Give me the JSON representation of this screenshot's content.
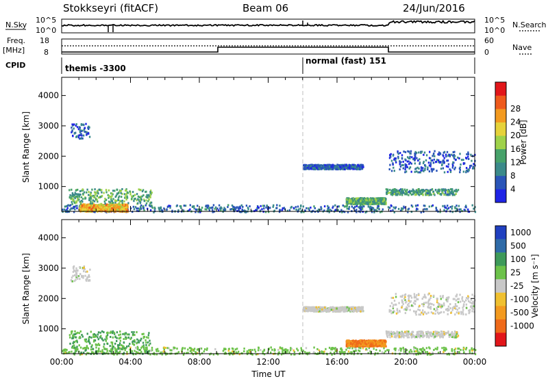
{
  "header": {
    "station": "Stokkseyri (fitACF)",
    "beam": "Beam 06",
    "date": "24/Jun/2016"
  },
  "top_panels": {
    "nsky_label": "N.Sky",
    "nsky_ticks": [
      "10^5",
      "10^0"
    ],
    "nsearch_label": "N.Search",
    "nsearch_ticks": [
      "10^5",
      "10^0"
    ],
    "freq_label_1": "Freq.",
    "freq_label_2": "[MHz]",
    "freq_ticks": [
      "18",
      "8"
    ],
    "nave_label": "Nave",
    "nave_ticks": [
      "60",
      "0"
    ],
    "cpid_label": "CPID",
    "cpid_modes": [
      {
        "label": "themis -3300",
        "start_hour": 0
      },
      {
        "label": "normal (fast) 151",
        "start_hour": 14
      }
    ]
  },
  "chart_data": [
    {
      "type": "heatmap",
      "name": "Power",
      "xlabel": "",
      "ylabel": "Slant Range [km]",
      "xlim": [
        0,
        24
      ],
      "ylim": [
        180,
        4600
      ],
      "yticks": [
        "1000",
        "2000",
        "3000",
        "4000"
      ],
      "colorbar_label": "Power [dB]",
      "colorbar_ticks": [
        "4",
        "8",
        "12",
        "16",
        "20",
        "24",
        "28"
      ],
      "colorbar_colors": [
        "#1f24e6",
        "#2a55b8",
        "#3b8a8a",
        "#47a26a",
        "#9fd24a",
        "#e6d23a",
        "#f39a1f",
        "#ef5a1c",
        "#e2161a"
      ],
      "scatter_regions": [
        {
          "t_start": 0.0,
          "t_end": 24.0,
          "r_min": 180,
          "r_max": 420,
          "density": "dense",
          "typical_power_db": 8
        },
        {
          "t_start": 1.0,
          "t_end": 3.8,
          "r_min": 200,
          "r_max": 450,
          "density": "dense",
          "typical_power_db": 24
        },
        {
          "t_start": 0.4,
          "t_end": 5.2,
          "r_min": 450,
          "r_max": 950,
          "density": "medium",
          "typical_power_db": 14
        },
        {
          "t_start": 0.5,
          "t_end": 1.6,
          "r_min": 2600,
          "r_max": 3100,
          "density": "sparse",
          "typical_power_db": 6
        },
        {
          "t_start": 14.0,
          "t_end": 17.5,
          "r_min": 1600,
          "r_max": 1750,
          "density": "dense",
          "typical_power_db": 6
        },
        {
          "t_start": 16.5,
          "t_end": 18.8,
          "r_min": 450,
          "r_max": 650,
          "density": "dense",
          "typical_power_db": 14
        },
        {
          "t_start": 18.8,
          "t_end": 23.0,
          "r_min": 750,
          "r_max": 950,
          "density": "medium",
          "typical_power_db": 12
        },
        {
          "t_start": 19.0,
          "t_end": 24.0,
          "r_min": 1500,
          "r_max": 2200,
          "density": "medium",
          "typical_power_db": 6
        }
      ]
    },
    {
      "type": "heatmap",
      "name": "Velocity",
      "xlabel": "Time UT",
      "ylabel": "Slant Range [km]",
      "xlim": [
        0,
        24
      ],
      "ylim": [
        180,
        4600
      ],
      "xticks": [
        "00:00",
        "04:00",
        "08:00",
        "12:00",
        "16:00",
        "20:00",
        "00:00"
      ],
      "yticks": [
        "1000",
        "2000",
        "3000",
        "4000"
      ],
      "colorbar_label": "Velocity [m s⁻¹]",
      "colorbar_ticks": [
        "1000",
        "500",
        "100",
        "25",
        "-25",
        "-100",
        "-500",
        "-1000"
      ],
      "colorbar_colors": [
        "#2040c0",
        "#2f6ba8",
        "#3e9a5a",
        "#6cc24a",
        "#c8c8c8",
        "#f0c030",
        "#f39a1f",
        "#ef6a1a",
        "#e2161a"
      ],
      "scatter_regions": [
        {
          "t_start": 0.0,
          "t_end": 24.0,
          "r_min": 180,
          "r_max": 420,
          "density": "dense",
          "typical_velocity": 25
        },
        {
          "t_start": 0.4,
          "t_end": 5.2,
          "r_min": 200,
          "r_max": 950,
          "density": "medium",
          "typical_velocity": 100
        },
        {
          "t_start": 0.5,
          "t_end": 1.6,
          "r_min": 2600,
          "r_max": 3100,
          "density": "sparse",
          "typical_velocity": 0
        },
        {
          "t_start": 14.0,
          "t_end": 17.5,
          "r_min": 1600,
          "r_max": 1750,
          "density": "dense",
          "typical_velocity": 0
        },
        {
          "t_start": 16.5,
          "t_end": 18.8,
          "r_min": 450,
          "r_max": 650,
          "density": "dense",
          "typical_velocity": -500
        },
        {
          "t_start": 18.8,
          "t_end": 23.0,
          "r_min": 750,
          "r_max": 950,
          "density": "medium",
          "typical_velocity": 0
        },
        {
          "t_start": 19.0,
          "t_end": 24.0,
          "r_min": 1500,
          "r_max": 2200,
          "density": "medium",
          "typical_velocity": 0
        }
      ]
    }
  ],
  "colors": {
    "axis": "#000000",
    "dashed_marker": "#bdbdbd"
  }
}
